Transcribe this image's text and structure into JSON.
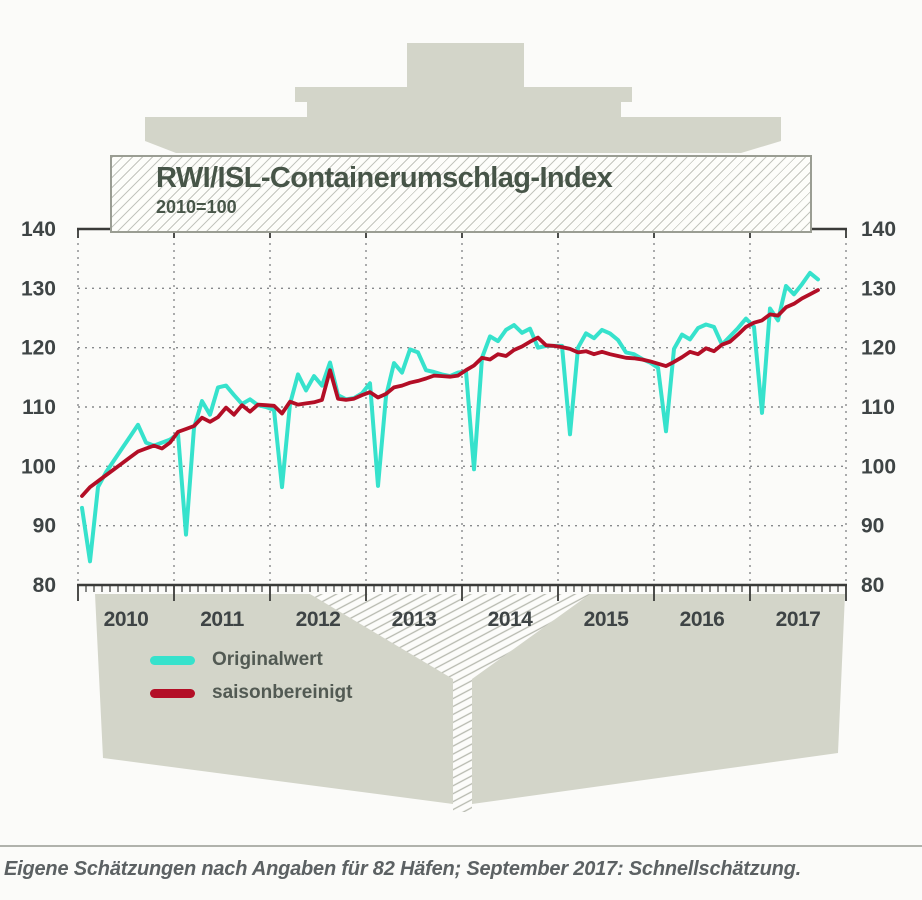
{
  "title": {
    "text": "RWI/ISL-Containerumschlag-Index",
    "subtitle": "2010=100"
  },
  "legend": [
    {
      "label": "Originalwert",
      "color": "#36e2cc"
    },
    {
      "label": "saisonbereinigt",
      "color": "#b30e26"
    }
  ],
  "footer": {
    "text": "Eigene Schätzungen nach Angaben für 82 Häfen; September 2017: Schnellschätzung."
  },
  "colors": {
    "background": "#fbfbf9",
    "ship_gray": "#d3d5c9",
    "hatch_line": "#b7b9af",
    "frame": "#3a3b39",
    "grid": "#87898c",
    "axis_text": "#3e4445",
    "title_text": "#475548",
    "original": "#36e2cc",
    "seasonal": "#b30e26"
  },
  "chart_data": {
    "type": "line",
    "title": "RWI/ISL-Containerumschlag-Index",
    "subtitle": "2010=100",
    "x_unit": "month",
    "start": "2010-01",
    "end": "2017-09",
    "ylim": [
      80,
      140
    ],
    "grid": "dashed",
    "legend_position": "below-left",
    "y_ticks": [
      140,
      130,
      120,
      110,
      100,
      90,
      80
    ],
    "y_gridlines": [
      130,
      120,
      110,
      100,
      90
    ],
    "year_labels": [
      "2010",
      "2011",
      "2012",
      "2013",
      "2014",
      "2015",
      "2016",
      "2017"
    ],
    "series": [
      {
        "name": "Originalwert",
        "color": "#36e2cc",
        "width": 4,
        "values": [
          93,
          84,
          96.5,
          99,
          101,
          103,
          105,
          107,
          104,
          103.5,
          104,
          104.5,
          105.5,
          88.5,
          106.5,
          111,
          108.7,
          113.3,
          113.6,
          112,
          110.5,
          111.3,
          110.3,
          110,
          109.5,
          96.5,
          110.5,
          115.5,
          112.8,
          115.2,
          113.6,
          117.5,
          112,
          111.3,
          111.5,
          112.3,
          114,
          96.7,
          111.8,
          117.4,
          115.8,
          119.7,
          119.2,
          116.2,
          115.9,
          115.5,
          115.2,
          115.8,
          116,
          99.5,
          118.3,
          121.9,
          121.1,
          123,
          123.8,
          122.5,
          123.2,
          120,
          120.3,
          120.3,
          120.3,
          105.4,
          120,
          122.4,
          121.6,
          123,
          122.4,
          121.3,
          119.2,
          118.9,
          118.1,
          117.5,
          116.6,
          105.9,
          119.8,
          122.2,
          121.4,
          123.3,
          123.9,
          123.5,
          120.5,
          121.9,
          123.3,
          124.9,
          123.5,
          109,
          126.6,
          124.6,
          130.4,
          129,
          130.7,
          132.6,
          131.5
        ]
      },
      {
        "name": "saisonbereinigt",
        "color": "#b30e26",
        "width": 3.8,
        "values": [
          95,
          96.5,
          97.5,
          98.5,
          99.5,
          100.5,
          101.5,
          102.5,
          103,
          103.5,
          103,
          104,
          105.8,
          106.3,
          106.8,
          108.2,
          107.5,
          108.3,
          109.9,
          108.7,
          110.3,
          109.2,
          110.4,
          110.3,
          110.2,
          108.9,
          110.9,
          110.4,
          110.6,
          110.8,
          111.2,
          116.2,
          111.4,
          111.2,
          111.4,
          112,
          112.5,
          111.6,
          112.2,
          113.3,
          113.6,
          114.1,
          114.4,
          114.8,
          115.3,
          115.2,
          115.1,
          115.3,
          116.2,
          117,
          118.3,
          118,
          118.9,
          118.6,
          119.6,
          120.2,
          121,
          121.7,
          120.4,
          120.3,
          120.1,
          119.8,
          119.2,
          119.4,
          118.9,
          119.3,
          118.9,
          118.6,
          118.3,
          118.2,
          118,
          117.7,
          117.3,
          116.9,
          117.6,
          118.4,
          119.3,
          118.9,
          119.9,
          119.4,
          120.5,
          121,
          122.2,
          123.5,
          124.2,
          124.6,
          125.6,
          125.4,
          126.8,
          127.4,
          128.3,
          129,
          129.7
        ]
      }
    ]
  }
}
